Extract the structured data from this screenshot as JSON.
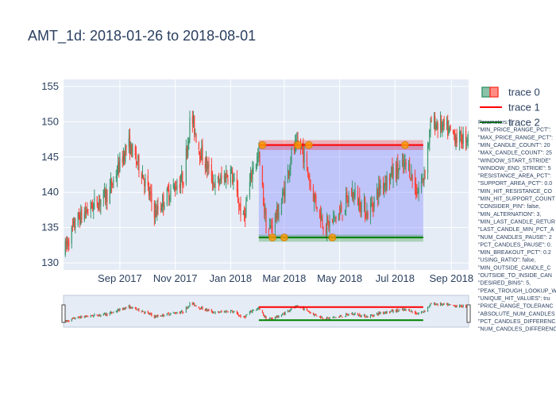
{
  "chart_data": {
    "type": "candlestick",
    "title": "AMT_1d: 2018-01-26 to 2018-08-01",
    "xlabel": "",
    "ylabel": "",
    "x_range": [
      "2017-07-01",
      "2018-09-20"
    ],
    "ylim": [
      129,
      156
    ],
    "x_ticks": [
      {
        "date": "2017-09-01",
        "label": "Sep 2017"
      },
      {
        "date": "2017-11-01",
        "label": "Nov 2017"
      },
      {
        "date": "2018-01-01",
        "label": "Jan 2018"
      },
      {
        "date": "2018-03-01",
        "label": "Mar 2018"
      },
      {
        "date": "2018-05-01",
        "label": "May 2018"
      },
      {
        "date": "2018-07-01",
        "label": "Jul 2018"
      },
      {
        "date": "2018-09-01",
        "label": "Sep 2018"
      }
    ],
    "y_ticks": [
      130,
      135,
      140,
      145,
      150,
      155
    ],
    "increasing_color": "#3d9970",
    "decreasing_color": "#ff4136",
    "price_path": [
      [
        "2017-07-01",
        131.5
      ],
      [
        "2017-07-15",
        136.0
      ],
      [
        "2017-08-01",
        138.0
      ],
      [
        "2017-08-20",
        140.0
      ],
      [
        "2017-09-10",
        147.0
      ],
      [
        "2017-09-25",
        143.0
      ],
      [
        "2017-10-10",
        137.0
      ],
      [
        "2017-10-25",
        140.0
      ],
      [
        "2017-11-10",
        142.0
      ],
      [
        "2017-11-18",
        151.0
      ],
      [
        "2017-11-28",
        146.0
      ],
      [
        "2017-12-15",
        141.0
      ],
      [
        "2018-01-01",
        143.0
      ],
      [
        "2018-01-15",
        136.0
      ],
      [
        "2018-01-26",
        144.0
      ],
      [
        "2018-02-01",
        145.0
      ],
      [
        "2018-02-10",
        134.0
      ],
      [
        "2018-02-25",
        138.0
      ],
      [
        "2018-03-10",
        146.0
      ],
      [
        "2018-03-20",
        146.5
      ],
      [
        "2018-04-01",
        140.0
      ],
      [
        "2018-04-15",
        135.0
      ],
      [
        "2018-05-01",
        137.0
      ],
      [
        "2018-05-15",
        140.0
      ],
      [
        "2018-06-01",
        137.0
      ],
      [
        "2018-06-15",
        141.0
      ],
      [
        "2018-07-01",
        143.0
      ],
      [
        "2018-07-15",
        144.0
      ],
      [
        "2018-07-25",
        140.0
      ],
      [
        "2018-08-01",
        142.0
      ],
      [
        "2018-08-10",
        150.0
      ],
      [
        "2018-08-25",
        149.0
      ],
      [
        "2018-09-10",
        147.5
      ],
      [
        "2018-09-20",
        148.0
      ]
    ],
    "resistance": {
      "start": "2018-02-01",
      "end": "2018-08-01",
      "level": 146.7,
      "band": [
        146.0,
        147.4
      ],
      "color": "#ff0000"
    },
    "support": {
      "start": "2018-02-01",
      "end": "2018-08-01",
      "level": 133.6,
      "band": [
        133.0,
        134.0
      ],
      "color": "#008000"
    },
    "range_box": {
      "start": "2018-02-01",
      "end": "2018-08-01",
      "low": 133.6,
      "high": 146.7,
      "color": "#6666ff"
    },
    "resistance_hits": [
      "2018-02-05",
      "2018-03-16",
      "2018-03-28",
      "2018-07-12"
    ],
    "support_hits": [
      "2018-02-16",
      "2018-03-01",
      "2018-04-23"
    ],
    "hit_color": "#ff9900",
    "legend": [
      {
        "name": "trace 0",
        "kind": "candle"
      },
      {
        "name": "trace 1",
        "kind": "line",
        "color": "#ff0000"
      },
      {
        "name": "trace 2",
        "kind": "line",
        "color": "#008000"
      }
    ],
    "legend_placement": "right",
    "params_lines": [
      "Parameters: {",
      "\"MIN_PRICE_RANGE_PCT\":",
      "\"MAX_PRICE_RANGE_PCT\":",
      "\"MIN_CANDLE_COUNT\": 20",
      "\"MAX_CANDLE_COUNT\": 25",
      "\"WINDOW_START_STRIDE\"",
      "\"WINDOW_END_STRIDE\": 5",
      "\"RESISTANCE_AREA_PCT\":",
      "\"SUPPORT_AREA_PCT\": 0.0",
      "\"MIN_HIT_RESISTANCE_CO",
      "\"MIN_HIT_SUPPORT_COUNT",
      "\"CONSIDER_PIN\": false,",
      "\"MIN_ALTERNATION\": 3,",
      "\"MIN_LAST_CANDLE_RETUR",
      "\"LAST_CANDLE_MIN_PCT_A",
      "\"NUM_CANDLES_PAUSE\": 2",
      "\"PCT_CANDLES_PAUSE\": 0.",
      "\"MIN_BREAKOUT_PCT\": 0.2",
      "\"USING_RATIO\": false,",
      "\"MIN_OUTSIDE_CANDLE_C",
      "\"OUTSIDE_TO_INSIDE_CAN",
      "\"DESIRED_BINS\": 5,",
      "\"PEAK_TROUGH_LOOKUP_W",
      "\"UNIQUE_HIT_VALUES\": tru",
      "\"PRICE_RANGE_TOLERANC",
      "\"ABSOLUTE_NUM_CANDLES",
      "\"PCT_CANDLES_DIFFERENC",
      "\"NUM_CANDLES_DIFFERENC"
    ]
  }
}
